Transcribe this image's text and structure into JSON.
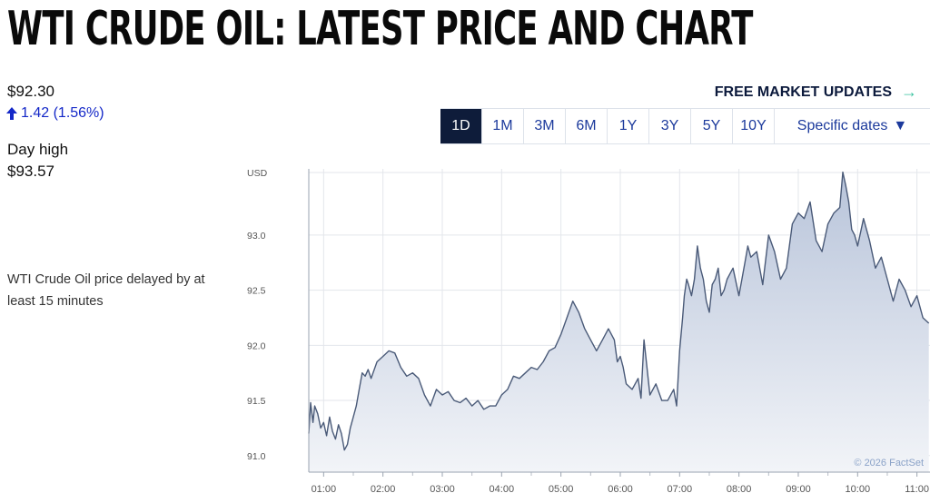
{
  "page": {
    "title": "WTI CRUDE OIL: LATEST PRICE AND CHART",
    "price": "$92.30",
    "change": "1.42 (1.56%)",
    "day_high_label": "Day high",
    "day_high_value": "$93.57",
    "delay_note": "WTI Crude Oil price delayed by at least 15 minutes",
    "updates_label": "FREE MARKET UPDATES",
    "colors": {
      "accent_navy": "#0e1c3a",
      "link_blue": "#1c3a9c",
      "up_blue": "#1428c8",
      "arrow_green": "#3bc3a0"
    }
  },
  "ranges": {
    "items": [
      "1D",
      "1M",
      "3M",
      "6M",
      "1Y",
      "3Y",
      "5Y",
      "10Y"
    ],
    "active": "1D",
    "specific_label": "Specific dates",
    "specific_icon": "triangle-down-icon"
  },
  "chart_data": {
    "type": "area",
    "unit_label": "USD",
    "credit": "© 2026 FactSet",
    "ylim": [
      90.85,
      93.6
    ],
    "yticks": [
      91.0,
      91.5,
      92.0,
      92.5,
      93.0
    ],
    "ytick_labels": [
      "91.0",
      "91.5",
      "92.0",
      "92.5",
      "93.0"
    ],
    "xlim": [
      0.75,
      11.22
    ],
    "xticks": [
      1,
      2,
      3,
      4,
      5,
      6,
      7,
      8,
      9,
      10,
      11
    ],
    "xtick_labels": [
      "01:00",
      "02:00",
      "03:00",
      "04:00",
      "05:00",
      "06:00",
      "07:00",
      "08:00",
      "09:00",
      "10:00",
      "11:00"
    ],
    "grid": true,
    "colors": {
      "line": "#4a5a78",
      "fill_top": "#b8c4da",
      "fill_bottom": "#f2f4f8"
    },
    "x": [
      0.75,
      0.78,
      0.82,
      0.85,
      0.9,
      0.95,
      1.0,
      1.05,
      1.1,
      1.15,
      1.2,
      1.25,
      1.3,
      1.35,
      1.4,
      1.45,
      1.5,
      1.55,
      1.6,
      1.65,
      1.7,
      1.75,
      1.8,
      1.9,
      2.0,
      2.1,
      2.2,
      2.3,
      2.4,
      2.5,
      2.6,
      2.7,
      2.8,
      2.9,
      3.0,
      3.1,
      3.2,
      3.3,
      3.4,
      3.5,
      3.6,
      3.7,
      3.8,
      3.9,
      4.0,
      4.1,
      4.2,
      4.3,
      4.4,
      4.5,
      4.6,
      4.7,
      4.8,
      4.9,
      5.0,
      5.1,
      5.2,
      5.3,
      5.4,
      5.5,
      5.6,
      5.7,
      5.8,
      5.9,
      5.95,
      6.0,
      6.05,
      6.1,
      6.2,
      6.3,
      6.35,
      6.4,
      6.5,
      6.6,
      6.7,
      6.8,
      6.9,
      6.95,
      7.0,
      7.05,
      7.08,
      7.12,
      7.15,
      7.2,
      7.25,
      7.3,
      7.35,
      7.4,
      7.45,
      7.5,
      7.55,
      7.6,
      7.65,
      7.7,
      7.75,
      7.8,
      7.85,
      7.9,
      8.0,
      8.1,
      8.15,
      8.2,
      8.3,
      8.4,
      8.5,
      8.6,
      8.7,
      8.8,
      8.9,
      9.0,
      9.1,
      9.2,
      9.3,
      9.4,
      9.5,
      9.6,
      9.7,
      9.75,
      9.8,
      9.85,
      9.9,
      9.95,
      10.0,
      10.1,
      10.2,
      10.3,
      10.4,
      10.5,
      10.6,
      10.7,
      10.8,
      10.9,
      11.0,
      11.1,
      11.2
    ],
    "y": [
      91.2,
      91.48,
      91.3,
      91.45,
      91.38,
      91.25,
      91.3,
      91.18,
      91.35,
      91.22,
      91.15,
      91.28,
      91.2,
      91.05,
      91.1,
      91.25,
      91.35,
      91.45,
      91.6,
      91.75,
      91.72,
      91.78,
      91.7,
      91.85,
      91.9,
      91.95,
      91.93,
      91.8,
      91.72,
      91.75,
      91.7,
      91.55,
      91.45,
      91.6,
      91.55,
      91.58,
      91.5,
      91.48,
      91.52,
      91.45,
      91.5,
      91.42,
      91.45,
      91.45,
      91.55,
      91.6,
      91.72,
      91.7,
      91.75,
      91.8,
      91.78,
      91.85,
      91.95,
      91.98,
      92.1,
      92.25,
      92.4,
      92.3,
      92.15,
      92.05,
      91.95,
      92.05,
      92.15,
      92.05,
      91.85,
      91.9,
      91.8,
      91.65,
      91.6,
      91.7,
      91.52,
      92.05,
      91.55,
      91.65,
      91.5,
      91.5,
      91.6,
      91.45,
      91.95,
      92.25,
      92.45,
      92.6,
      92.55,
      92.45,
      92.6,
      92.9,
      92.7,
      92.6,
      92.4,
      92.3,
      92.55,
      92.6,
      92.7,
      92.45,
      92.5,
      92.6,
      92.65,
      92.7,
      92.45,
      92.75,
      92.9,
      92.8,
      92.85,
      92.55,
      93.0,
      92.85,
      92.6,
      92.7,
      93.1,
      93.2,
      93.15,
      93.3,
      92.95,
      92.85,
      93.1,
      93.2,
      93.25,
      93.57,
      93.45,
      93.3,
      93.05,
      93.0,
      92.9,
      93.15,
      92.95,
      92.7,
      92.8,
      92.6,
      92.4,
      92.6,
      92.5,
      92.35,
      92.45,
      92.25,
      92.2
    ],
    "title": "",
    "xlabel": "",
    "ylabel": ""
  }
}
